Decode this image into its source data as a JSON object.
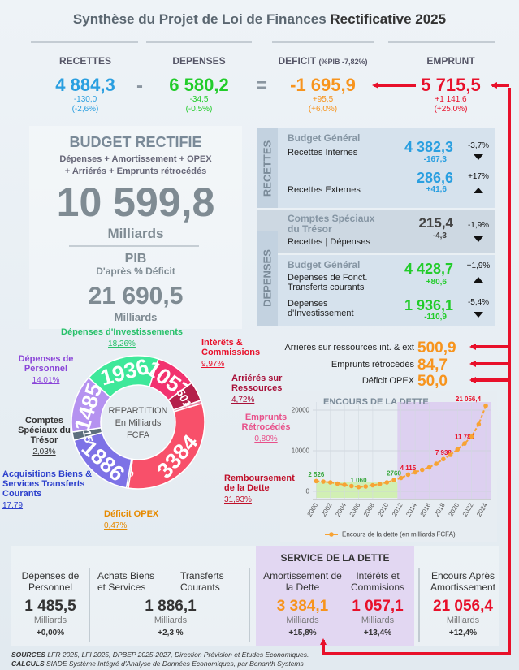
{
  "header": {
    "title": "Synthèse du Projet de Loi de Finances",
    "title_bold": "Rectificative 2025"
  },
  "summary": [
    {
      "label": "RECETTES",
      "value": "4 884,3",
      "change": "-130,0",
      "pct": "(-2,6%)",
      "color": "#2a9fe0"
    },
    {
      "label": "DEPENSES",
      "value": "6 580,2",
      "change": "-34,5",
      "pct": "(-0,5%)",
      "color": "#22cc2a"
    },
    {
      "label": "DEFICIT",
      "note": "(%PIB -7,82%)",
      "value": "-1 695,9",
      "change": "+95,5",
      "pct": "(+6,0%)",
      "color": "#f7941d"
    },
    {
      "label": "EMPRUNT",
      "value": "5 715,5",
      "change": "+1 141,6",
      "pct": "(+25,0%)",
      "color": "#e8102a"
    }
  ],
  "operators": [
    "-",
    "="
  ],
  "budget": {
    "title": "BUDGET RECTIFIE",
    "line1": "Dépenses + Amortissement + OPEX",
    "line2": "+ Arriérés + Emprunts rétrocédés",
    "value": "10 599,8",
    "unit": "Milliards",
    "pib_title": "PIB",
    "pib_sub": "D'après % Déficit",
    "pib_value": "21 690,5",
    "pib_unit": "Milliards"
  },
  "detail": {
    "recettes_label": "RECETTES",
    "depenses_label": "DEPENSES",
    "rows": [
      {
        "group": "Budget Général",
        "label": "Recettes Internes",
        "value": "4 382,3",
        "change": "-167,3",
        "pct": "-3,7%",
        "trend": "down"
      },
      {
        "label": "Recettes Externes",
        "value": "286,6",
        "change": "+41,6",
        "pct": "+17%",
        "trend": "up"
      },
      {
        "group": "Comptes Spéciaux du Trésor",
        "label": "Recettes | Dépenses",
        "value": "215,4",
        "change": "-4,3",
        "pct": "-1,9%",
        "trend": "down"
      },
      {
        "group": "Budget Général",
        "label": "Dépenses de Fonct. Transferts courants",
        "value": "4 428,7",
        "change": "+80,6",
        "pct": "+1,9%",
        "trend": "up"
      },
      {
        "label": "Dépenses d'Investissement",
        "value": "1 936,1",
        "change": "-110,9",
        "pct": "-5,4%",
        "trend": "down"
      }
    ]
  },
  "extras": [
    {
      "label": "Arriérés sur ressources int. & ext",
      "value": "500,9"
    },
    {
      "label": "Emprunts rétrocédés",
      "value": "84,7"
    },
    {
      "label": "Déficit OPEX",
      "value": "50,0"
    }
  ],
  "chart_data": [
    {
      "type": "pie",
      "center_lines": [
        "REPARTITION",
        "En Milliards",
        "FCFA"
      ],
      "categories": [
        "Dépenses d'Investissements",
        "Intérêts & Commissions",
        "Arriérés sur Ressources",
        "Emprunts Rétrocédés",
        "Remboursement de la Dette",
        "Déficit OPEX",
        "Acquisitions Biens & Services Transferts Courants",
        "Comptes Spéciaux du Trésor",
        "Dépenses de Personnel"
      ],
      "values": [
        1936,
        1057,
        501,
        85,
        3384,
        50,
        1886,
        215,
        1485
      ],
      "percent_labels": [
        "18,26%",
        "9,97%",
        "4,72%",
        "0,80%",
        "31,93%",
        "0,47%",
        "17,79",
        "2,03%",
        "14,01%"
      ],
      "colors": [
        "#3ee89a",
        "#f2326f",
        "#b41f4a",
        "#e98aa8",
        "#f8506a",
        "#a09cb0",
        "#7d72e6",
        "#5d6f7c",
        "#b592f0"
      ],
      "label_colors": [
        "#27c06a",
        "#e8102a",
        "#a80f38",
        "#e8508a",
        "#c0102a",
        "#e68a00",
        "#2c3fcc",
        "#333333",
        "#8a44d8"
      ]
    },
    {
      "type": "line",
      "title": "ENCOURS DE LA DETTE",
      "x": [
        2000,
        2001,
        2002,
        2003,
        2004,
        2005,
        2006,
        2007,
        2008,
        2009,
        2010,
        2011,
        2012,
        2013,
        2014,
        2015,
        2016,
        2017,
        2018,
        2019,
        2020,
        2021,
        2022,
        2023,
        2024
      ],
      "series": [
        {
          "name": "Encours de la dette (en milliards FCFA)",
          "color": "#f7a334",
          "values": [
            2526,
            2400,
            2200,
            1900,
            1600,
            1300,
            1060,
            1200,
            1500,
            1800,
            2200,
            2760,
            3300,
            4115,
            4700,
            5300,
            5900,
            6800,
            7938,
            9000,
            10300,
            11783,
            13500,
            16500,
            21056.4
          ],
          "value_labels": [
            "2 526",
            null,
            null,
            null,
            null,
            null,
            "1 060",
            null,
            null,
            null,
            null,
            "2760",
            null,
            "4 115",
            null,
            null,
            null,
            null,
            "7 938",
            null,
            null,
            "11 783",
            null,
            null,
            "21 056,4"
          ]
        }
      ],
      "xlim": [
        1999.5,
        2024.8
      ],
      "ylim": [
        -2000,
        22000
      ],
      "xticks": [
        2000,
        2002,
        2004,
        2006,
        2008,
        2010,
        2012,
        2014,
        2016,
        2018,
        2020,
        2022,
        2024
      ],
      "yticks": [
        0,
        10000,
        20000
      ],
      "grid": true
    }
  ],
  "bottom": {
    "service_title": "SERVICE DE LA DETTE",
    "items": [
      {
        "label": "Dépenses de Personnel",
        "value": "1 485,5",
        "unit": "Milliards",
        "change": "+0,00%",
        "color": "#333333"
      },
      {
        "label": "Achats Biens et Services",
        "label_right": "Transferts Courants",
        "value": "1 886,1",
        "unit": "Milliards",
        "change": "+2,3 %",
        "color": "#333333"
      },
      {
        "label": "Amortissement de la Dette",
        "value": "3 384,1",
        "unit": "Milliards",
        "change": "+15,8%",
        "color": "#f7941d"
      },
      {
        "label": "Intérêts et Commisions",
        "value": "1 057,1",
        "unit": "Milliards",
        "change": "+13,4%",
        "color": "#e8102a"
      },
      {
        "label": "Encours Après Amortissement",
        "value": "21 056,4",
        "unit": "Milliards",
        "change": "+12,4%",
        "color": "#e8102a"
      }
    ]
  },
  "footer": {
    "sources_label": "SOURCES",
    "sources": "LFR 2025, LFI 2025, DPBEP 2025-2027, Direction Prévision et Etudes Economiques.",
    "calc_label": "CALCULS",
    "calc": "SIADE Système Intégré d'Analyse de Données Economiques, par Bonanth Systems"
  }
}
